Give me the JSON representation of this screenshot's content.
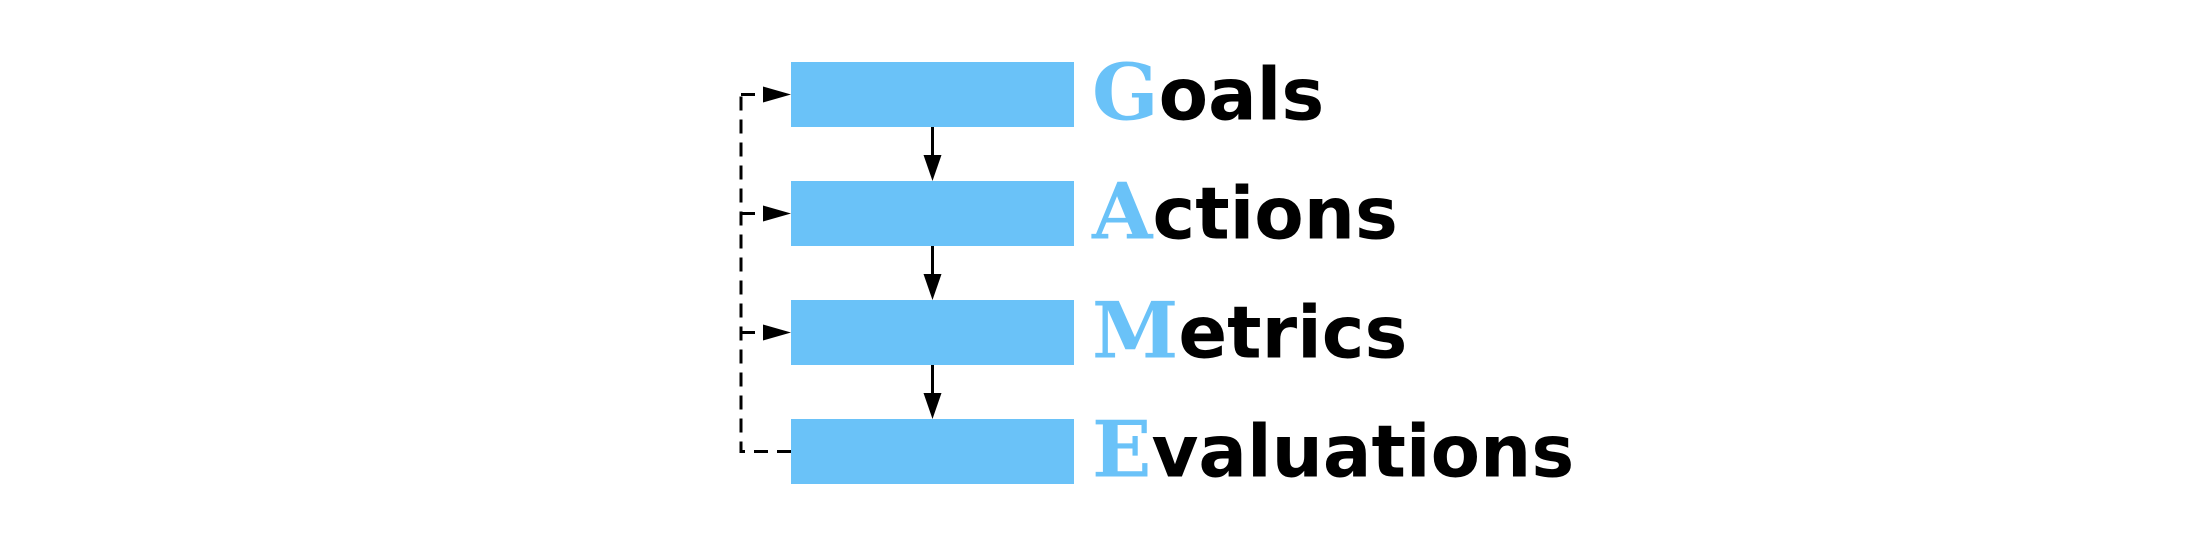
{
  "colors": {
    "box_fill": "#6ac2f8",
    "accent_letter": "#6ac2f8",
    "text": "#000000",
    "arrow": "#000000",
    "background": "#ffffff"
  },
  "stages": [
    {
      "initial": "G",
      "rest": "oals"
    },
    {
      "initial": "A",
      "rest": "ctions"
    },
    {
      "initial": "M",
      "rest": "etrics"
    },
    {
      "initial": "E",
      "rest": "valuations"
    }
  ],
  "flow": {
    "sequence_arrows": "solid",
    "feedback_loop": "dashed"
  }
}
